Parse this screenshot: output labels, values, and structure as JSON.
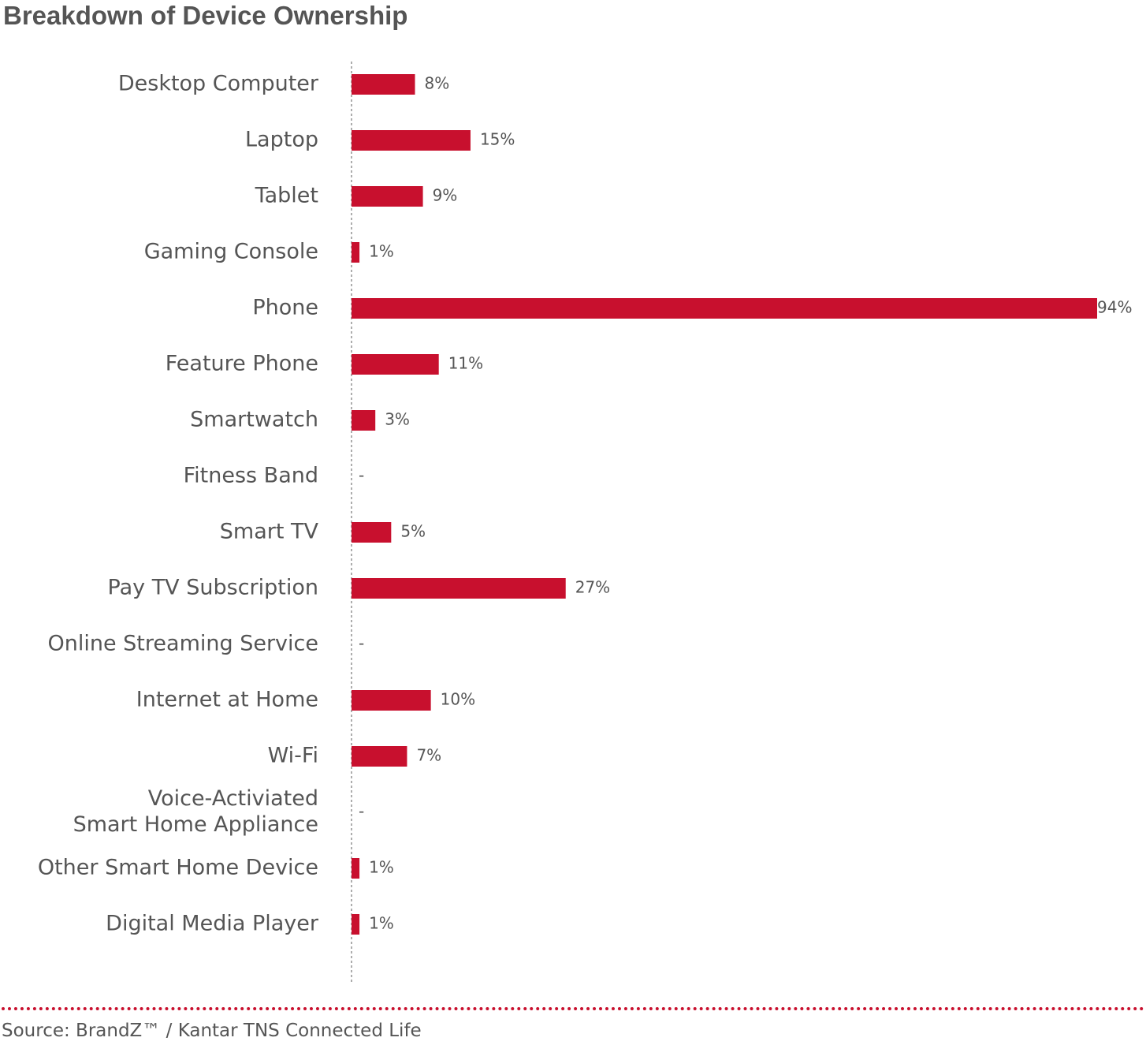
{
  "chart_data": {
    "type": "bar",
    "orientation": "horizontal",
    "title": "Breakdown of Device Ownership",
    "categories": [
      "Desktop Computer",
      "Laptop",
      "Tablet",
      "Gaming Console",
      "Phone",
      "Feature Phone",
      "Smartwatch",
      "Fitness Band",
      "Smart TV",
      "Pay TV Subscription",
      "Online Streaming Service",
      "Internet at Home",
      "Wi-Fi",
      "Voice-Activiated Smart Home Appliance",
      "Other Smart Home Device",
      "Digital Media Player"
    ],
    "category_lines": [
      [
        "Desktop Computer"
      ],
      [
        "Laptop"
      ],
      [
        "Tablet"
      ],
      [
        "Gaming Console"
      ],
      [
        "Phone"
      ],
      [
        "Feature Phone"
      ],
      [
        "Smartwatch"
      ],
      [
        "Fitness Band"
      ],
      [
        "Smart TV"
      ],
      [
        "Pay TV Subscription"
      ],
      [
        "Online Streaming Service"
      ],
      [
        "Internet at Home"
      ],
      [
        "Wi-Fi"
      ],
      [
        "Voice-Activiated",
        "Smart Home Appliance"
      ],
      [
        "Other Smart Home Device"
      ],
      [
        "Digital Media Player"
      ]
    ],
    "values": [
      8,
      15,
      9,
      1,
      94,
      11,
      3,
      null,
      5,
      27,
      null,
      10,
      7,
      null,
      1,
      1
    ],
    "value_labels": [
      "8%",
      "15%",
      "9%",
      "1%",
      "94%",
      "11%",
      "3%",
      "-",
      "5%",
      "27%",
      "-",
      "10%",
      "7%",
      "-",
      "1%",
      "1%"
    ],
    "unit": "%",
    "xlim": [
      0,
      94
    ],
    "grid": false,
    "bar_color": "#c8102e",
    "baseline_style": "dotted"
  },
  "source": "Source: BrandZ™ / Kantar TNS Connected Life",
  "colors": {
    "bar": "#c8102e",
    "text": "#555555",
    "footer_rule": "#c8102e"
  }
}
